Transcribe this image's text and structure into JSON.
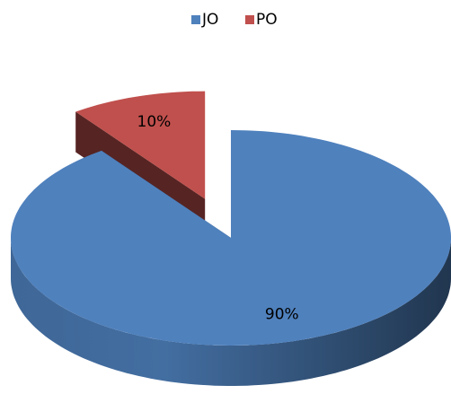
{
  "chart_data": {
    "type": "pie",
    "categories": [
      "JO",
      "PO"
    ],
    "values": [
      90,
      10
    ],
    "value_labels": [
      "90%",
      "10%"
    ],
    "colors": [
      "#4f81bd",
      "#c0504d"
    ],
    "explode": [
      false,
      true
    ],
    "legend": "top",
    "three_d": true
  }
}
